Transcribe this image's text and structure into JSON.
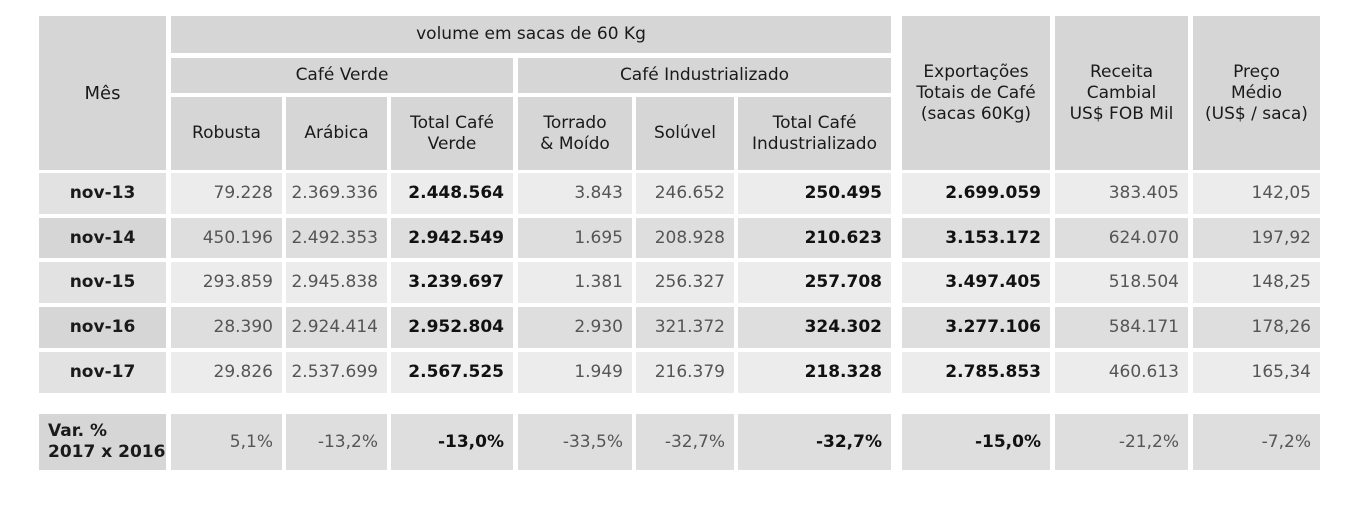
{
  "header": {
    "mes": "Mês",
    "volume": "volume em sacas de 60 Kg",
    "cafe_verde": "Café Verde",
    "cafe_industrializado": "Café Industrializado",
    "robusta": "Robusta",
    "arabica": "Arábica",
    "total_cafe_verde": [
      "Total Café",
      "Verde"
    ],
    "torrado": [
      "Torrado",
      "& Moído"
    ],
    "soluvel": "Solúvel",
    "total_industrializado": [
      "Total Café",
      "Industrializado"
    ],
    "exportacoes": [
      "Exportações",
      "Totais de Café",
      "(sacas 60Kg)"
    ],
    "receita": [
      "Receita",
      "Cambial",
      "US$ FOB Mil"
    ],
    "preco": [
      "Preço",
      "Médio",
      "(US$ / saca)"
    ]
  },
  "rows": [
    {
      "mes": "nov-13",
      "robusta": "79.228",
      "arabica": "2.369.336",
      "total_verde": "2.448.564",
      "torrado": "3.843",
      "soluvel": "246.652",
      "total_ind": "250.495",
      "exportacoes": "2.699.059",
      "receita": "383.405",
      "preco": "142,05"
    },
    {
      "mes": "nov-14",
      "robusta": "450.196",
      "arabica": "2.492.353",
      "total_verde": "2.942.549",
      "torrado": "1.695",
      "soluvel": "208.928",
      "total_ind": "210.623",
      "exportacoes": "3.153.172",
      "receita": "624.070",
      "preco": "197,92"
    },
    {
      "mes": "nov-15",
      "robusta": "293.859",
      "arabica": "2.945.838",
      "total_verde": "3.239.697",
      "torrado": "1.381",
      "soluvel": "256.327",
      "total_ind": "257.708",
      "exportacoes": "3.497.405",
      "receita": "518.504",
      "preco": "148,25"
    },
    {
      "mes": "nov-16",
      "robusta": "28.390",
      "arabica": "2.924.414",
      "total_verde": "2.952.804",
      "torrado": "2.930",
      "soluvel": "321.372",
      "total_ind": "324.302",
      "exportacoes": "3.277.106",
      "receita": "584.171",
      "preco": "178,26"
    },
    {
      "mes": "nov-17",
      "robusta": "29.826",
      "arabica": "2.537.699",
      "total_verde": "2.567.525",
      "torrado": "1.949",
      "soluvel": "216.379",
      "total_ind": "218.328",
      "exportacoes": "2.785.853",
      "receita": "460.613",
      "preco": "165,34"
    }
  ],
  "variation": {
    "label": [
      "Var. %",
      "2017 x 2016"
    ],
    "robusta": "5,1%",
    "arabica": "-13,2%",
    "total_verde": "-13,0%",
    "torrado": "-33,5%",
    "soluvel": "-32,7%",
    "total_ind": "-32,7%",
    "exportacoes": "-15,0%",
    "receita": "-21,2%",
    "preco": "-7,2%"
  }
}
